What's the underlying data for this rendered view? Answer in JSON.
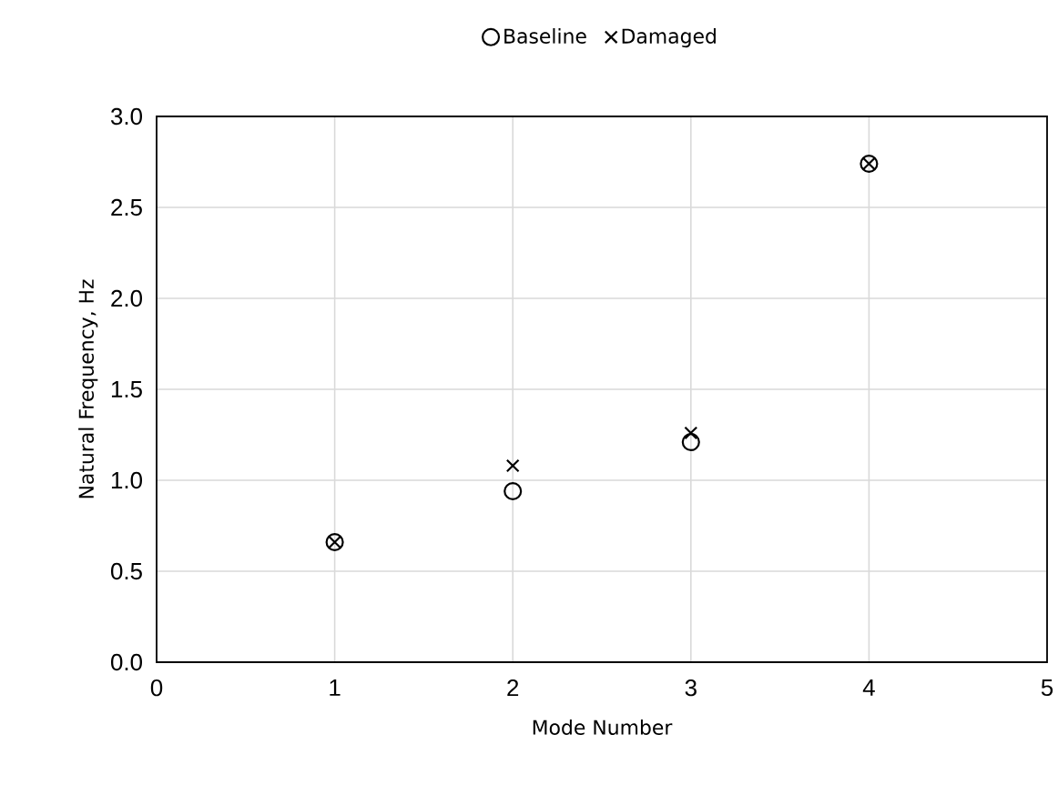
{
  "chart_data": {
    "type": "scatter",
    "xlabel": "Mode Number",
    "ylabel": "Natural Frequency, Hz",
    "x": [
      1,
      2,
      3,
      4
    ],
    "series": [
      {
        "name": "Baseline",
        "color": "#000000",
        "marker": "circle",
        "values": [
          0.66,
          0.94,
          1.21,
          2.74
        ]
      },
      {
        "name": "Damaged",
        "color": "#000000",
        "marker": "cross",
        "values": [
          0.66,
          1.08,
          1.26,
          2.74
        ]
      }
    ],
    "xlim": [
      0,
      5
    ],
    "xticks": [
      0,
      1,
      2,
      3,
      4,
      5
    ],
    "ylim": [
      0,
      3
    ],
    "yticks": [
      {
        "value": 0,
        "label": "0.0"
      },
      0.5,
      {
        "value": 1,
        "label": "1.0"
      },
      1.5,
      {
        "value": 2,
        "label": "2.0"
      },
      2.5,
      {
        "value": 3,
        "label": "3.0"
      }
    ],
    "grid": true,
    "legend": "top"
  }
}
